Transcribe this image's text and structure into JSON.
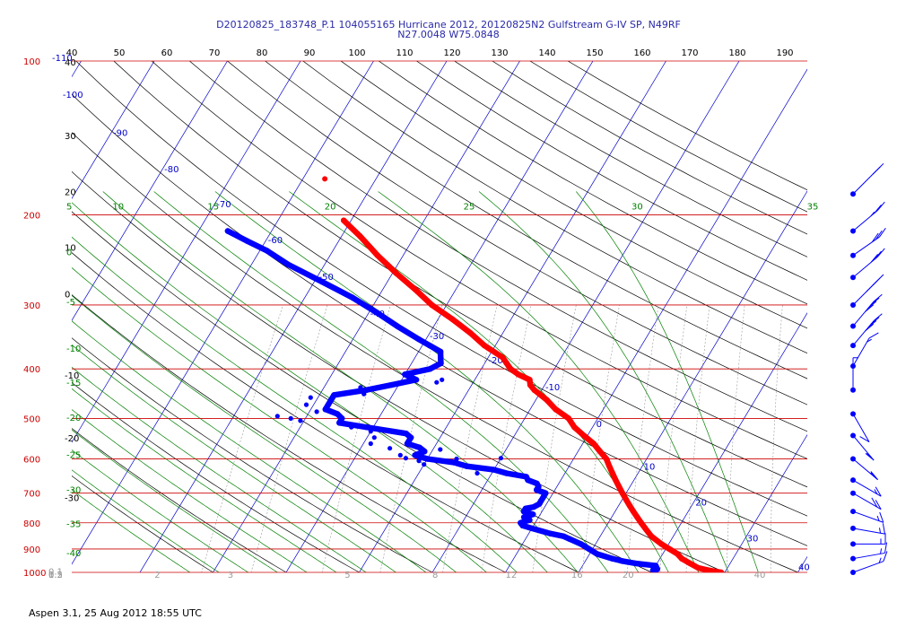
{
  "header": {
    "line1": "D20120825_183748_P.1 104055165 Hurricane 2012, 20120825N2 Gulfstream G-IV SP, N49RF",
    "line2": "N27.0048 W75.0848"
  },
  "footer": {
    "text": "Aspen 3.1, 25 Aug 2012  18:55 UTC"
  },
  "colors": {
    "temperature": "#ff0000",
    "dewpoint": "#0000ff",
    "isobar": "#cc0000",
    "isotherm": "#0000cc",
    "dry_adiabat": "#000000",
    "moist_adiabat": "#008000",
    "mixing_ratio": "#999999",
    "wind": "#0000ff"
  },
  "chart_data": {
    "type": "scatter",
    "chart_kind": "skew-T log-P sounding",
    "pressure_axis": {
      "scale": "log",
      "range": [
        1000,
        100
      ],
      "labels": [
        "100",
        "200",
        "300",
        "400",
        "500",
        "600",
        "700",
        "800",
        "900",
        "1000"
      ],
      "values": [
        100,
        200,
        300,
        400,
        500,
        600,
        700,
        800,
        900,
        1000
      ]
    },
    "top_axis": {
      "labels": [
        "40",
        "50",
        "60",
        "70",
        "80",
        "90",
        "100",
        "110",
        "120",
        "130",
        "140",
        "150",
        "160",
        "170",
        "180",
        "190"
      ],
      "values": [
        40,
        50,
        60,
        70,
        80,
        90,
        100,
        110,
        120,
        130,
        140,
        150,
        160,
        170,
        180,
        190
      ]
    },
    "isotherm_labels": [
      {
        "text": "-110",
        "t": -110,
        "p": 100
      },
      {
        "text": "-100",
        "t": -100,
        "p": 118
      },
      {
        "text": "-90",
        "t": -90,
        "p": 140
      },
      {
        "text": "-80",
        "t": -80,
        "p": 165
      },
      {
        "text": "-70",
        "t": -70,
        "p": 193
      },
      {
        "text": "-60",
        "t": -60,
        "p": 227
      },
      {
        "text": "-50",
        "t": -50,
        "p": 268
      },
      {
        "text": "-40",
        "t": -40,
        "p": 316
      },
      {
        "text": "-30",
        "t": -30,
        "p": 350
      },
      {
        "text": "-20",
        "t": -20,
        "p": 390
      },
      {
        "text": "-10",
        "t": -10,
        "p": 440
      },
      {
        "text": "0",
        "t": 0,
        "p": 520
      },
      {
        "text": "10",
        "t": 10,
        "p": 630
      },
      {
        "text": "20",
        "t": 20,
        "p": 740
      },
      {
        "text": "30",
        "t": 30,
        "p": 870
      },
      {
        "text": "40",
        "t": 40,
        "p": 990
      }
    ],
    "dry_adiabat_labels": [
      {
        "text": "40",
        "t": -110,
        "p": 102
      },
      {
        "text": "30",
        "t": -110,
        "p": 142
      },
      {
        "text": "20",
        "t": -110,
        "p": 183
      },
      {
        "text": "10",
        "t": -110,
        "p": 235
      },
      {
        "text": "0",
        "t": -110,
        "p": 290
      },
      {
        "text": "-10",
        "t": -110,
        "p": 418
      },
      {
        "text": "-20",
        "t": -110,
        "p": 555
      },
      {
        "text": "-30",
        "t": -110,
        "p": 725
      }
    ],
    "moist_adiabat_labels": [
      {
        "text": "5",
        "t": -98,
        "p": 195
      },
      {
        "text": "10",
        "t": -86,
        "p": 195
      },
      {
        "text": "15",
        "t": -73,
        "p": 195
      },
      {
        "text": "20",
        "t": -57,
        "p": 195
      },
      {
        "text": "25",
        "t": -38,
        "p": 195
      },
      {
        "text": "30",
        "t": -15,
        "p": 195
      },
      {
        "text": "35",
        "t": 9,
        "p": 195
      },
      {
        "text": "0",
        "t": -110,
        "p": 240
      },
      {
        "text": "-5",
        "t": -110,
        "p": 300
      },
      {
        "text": "-10",
        "t": -110,
        "p": 370
      },
      {
        "text": "-15",
        "t": -110,
        "p": 432
      },
      {
        "text": "-20",
        "t": -110,
        "p": 505
      },
      {
        "text": "-25",
        "t": -110,
        "p": 598
      },
      {
        "text": "-30",
        "t": -110,
        "p": 700
      },
      {
        "text": "-35",
        "t": -110,
        "p": 815
      },
      {
        "text": "-40",
        "t": -110,
        "p": 930
      }
    ],
    "mixing_ratio_labels": [
      {
        "text": "0.1",
        "t": -110,
        "p": 985
      },
      {
        "text": "0.2",
        "t": -91,
        "p": 1000
      },
      {
        "text": "0.5",
        "t": -80,
        "p": 1000
      },
      {
        "text": "1",
        "t": -65,
        "p": 1000
      },
      {
        "text": "2",
        "t": -48,
        "p": 1000
      },
      {
        "text": "3",
        "t": -38,
        "p": 1000
      },
      {
        "text": "5",
        "t": -22,
        "p": 1000
      },
      {
        "text": "8",
        "t": -10,
        "p": 1000
      },
      {
        "text": "12",
        "t": 0,
        "p": 1000
      },
      {
        "text": "16",
        "t": 9,
        "p": 1000
      },
      {
        "text": "20",
        "t": 16,
        "p": 1000
      },
      {
        "text": "40",
        "t": 34,
        "p": 1000
      }
    ],
    "temperature_profile": [
      [
        1000,
        29.5
      ],
      [
        990,
        27.5
      ],
      [
        980,
        26.0
      ],
      [
        960,
        24.5
      ],
      [
        940,
        23.0
      ],
      [
        920,
        22.0
      ],
      [
        900,
        20.5
      ],
      [
        880,
        19.0
      ],
      [
        850,
        17.0
      ],
      [
        820,
        15.5
      ],
      [
        800,
        14.5
      ],
      [
        780,
        13.5
      ],
      [
        760,
        12.5
      ],
      [
        740,
        11.5
      ],
      [
        720,
        10.5
      ],
      [
        700,
        9.5
      ],
      [
        680,
        8.5
      ],
      [
        660,
        7.5
      ],
      [
        640,
        6.5
      ],
      [
        620,
        5.5
      ],
      [
        600,
        4.5
      ],
      [
        580,
        3.0
      ],
      [
        560,
        1.5
      ],
      [
        540,
        -0.5
      ],
      [
        520,
        -2.5
      ],
      [
        500,
        -4.0
      ],
      [
        480,
        -6.5
      ],
      [
        460,
        -8.5
      ],
      [
        440,
        -11.0
      ],
      [
        430,
        -12.0
      ],
      [
        420,
        -12.5
      ],
      [
        410,
        -14.5
      ],
      [
        400,
        -16.0
      ],
      [
        390,
        -17.0
      ],
      [
        380,
        -18.0
      ],
      [
        360,
        -21.5
      ],
      [
        340,
        -24.5
      ],
      [
        320,
        -28.0
      ],
      [
        300,
        -32.0
      ],
      [
        280,
        -35.5
      ],
      [
        260,
        -39.5
      ],
      [
        240,
        -43.5
      ],
      [
        220,
        -47.5
      ],
      [
        205,
        -51.0
      ]
    ],
    "temperature_isolated_point": [
      170,
      -57.0
    ],
    "dewpoint_profile": [
      [
        1000,
        20.5
      ],
      [
        990,
        20.0
      ],
      [
        985,
        20.5
      ],
      [
        970,
        20.0
      ],
      [
        960,
        17.0
      ],
      [
        950,
        15.0
      ],
      [
        940,
        13.5
      ],
      [
        920,
        11.0
      ],
      [
        900,
        9.5
      ],
      [
        880,
        8.0
      ],
      [
        860,
        6.0
      ],
      [
        850,
        5.0
      ],
      [
        840,
        3.0
      ],
      [
        820,
        0.0
      ],
      [
        810,
        -1.5
      ],
      [
        800,
        -2.0
      ],
      [
        790,
        -1.0
      ],
      [
        780,
        -2.0
      ],
      [
        770,
        -1.0
      ],
      [
        760,
        -2.5
      ],
      [
        750,
        -2.5
      ],
      [
        745,
        -1.5
      ],
      [
        735,
        -1.0
      ],
      [
        725,
        -1.0
      ],
      [
        715,
        -1.0
      ],
      [
        700,
        -1.0
      ],
      [
        690,
        -2.5
      ],
      [
        680,
        -2.5
      ],
      [
        670,
        -3.0
      ],
      [
        660,
        -4.5
      ],
      [
        650,
        -5.0
      ],
      [
        640,
        -8.0
      ],
      [
        630,
        -10.0
      ],
      [
        620,
        -14.0
      ],
      [
        610,
        -16.0
      ],
      [
        600,
        -20.0
      ],
      [
        590,
        -22.0
      ],
      [
        580,
        -21.0
      ],
      [
        570,
        -22.0
      ],
      [
        560,
        -24.0
      ],
      [
        545,
        -24.0
      ],
      [
        535,
        -25.0
      ],
      [
        520,
        -31.0
      ],
      [
        510,
        -35.0
      ],
      [
        500,
        -35.0
      ],
      [
        490,
        -36.0
      ],
      [
        480,
        -38.0
      ],
      [
        470,
        -38.0
      ],
      [
        460,
        -38.0
      ],
      [
        450,
        -38.0
      ],
      [
        440,
        -34.0
      ],
      [
        430,
        -31.0
      ],
      [
        420,
        -28.0
      ],
      [
        410,
        -30.0
      ],
      [
        400,
        -27.0
      ],
      [
        390,
        -26.0
      ],
      [
        380,
        -26.5
      ],
      [
        370,
        -27.0
      ],
      [
        360,
        -29.0
      ],
      [
        350,
        -31.0
      ],
      [
        330,
        -35.0
      ],
      [
        310,
        -39.0
      ],
      [
        290,
        -43.5
      ],
      [
        270,
        -49.0
      ],
      [
        250,
        -55.0
      ],
      [
        235,
        -59.0
      ],
      [
        225,
        -62.5
      ],
      [
        215,
        -66.0
      ]
    ],
    "dewpoint_scatter": [
      [
        615,
        -20.0
      ],
      [
        605,
        -21.0
      ],
      [
        598,
        -23.0
      ],
      [
        590,
        -24.0
      ],
      [
        572,
        -26.0
      ],
      [
        560,
        -29.0
      ],
      [
        545,
        -29.0
      ],
      [
        530,
        -30.0
      ],
      [
        520,
        -33.0
      ],
      [
        505,
        -40.5
      ],
      [
        500,
        -42.0
      ],
      [
        495,
        -44.0
      ],
      [
        485,
        -39.0
      ],
      [
        470,
        -41.0
      ],
      [
        455,
        -41.0
      ],
      [
        448,
        -34.0
      ],
      [
        435,
        -35.0
      ],
      [
        425,
        -25.0
      ],
      [
        420,
        -24.5
      ],
      [
        598,
        -10.0
      ],
      [
        640,
        -12.0
      ],
      [
        600,
        -16.0
      ],
      [
        575,
        -19.0
      ]
    ],
    "wind_barbs": {
      "station_x_note": "right-hand column",
      "levels": [
        {
          "p": 182,
          "dir": 225,
          "speed": 20
        },
        {
          "p": 215,
          "dir": 230,
          "speed": 25
        },
        {
          "p": 240,
          "dir": 235,
          "speed": 30
        },
        {
          "p": 265,
          "dir": 230,
          "speed": 30
        },
        {
          "p": 300,
          "dir": 225,
          "speed": 35
        },
        {
          "p": 330,
          "dir": 220,
          "speed": 40
        },
        {
          "p": 360,
          "dir": 220,
          "speed": 40
        },
        {
          "p": 395,
          "dir": 210,
          "speed": 15
        },
        {
          "p": 440,
          "dir": 180,
          "speed": 5
        },
        {
          "p": 490,
          "dir": 330,
          "speed": 10
        },
        {
          "p": 540,
          "dir": 320,
          "speed": 15
        },
        {
          "p": 600,
          "dir": 310,
          "speed": 15
        },
        {
          "p": 660,
          "dir": 300,
          "speed": 15
        },
        {
          "p": 700,
          "dir": 300,
          "speed": 20
        },
        {
          "p": 760,
          "dir": 290,
          "speed": 15
        },
        {
          "p": 820,
          "dir": 280,
          "speed": 15
        },
        {
          "p": 880,
          "dir": 270,
          "speed": 15
        },
        {
          "p": 940,
          "dir": 260,
          "speed": 15
        },
        {
          "p": 1000,
          "dir": 250,
          "speed": 15
        }
      ]
    }
  }
}
